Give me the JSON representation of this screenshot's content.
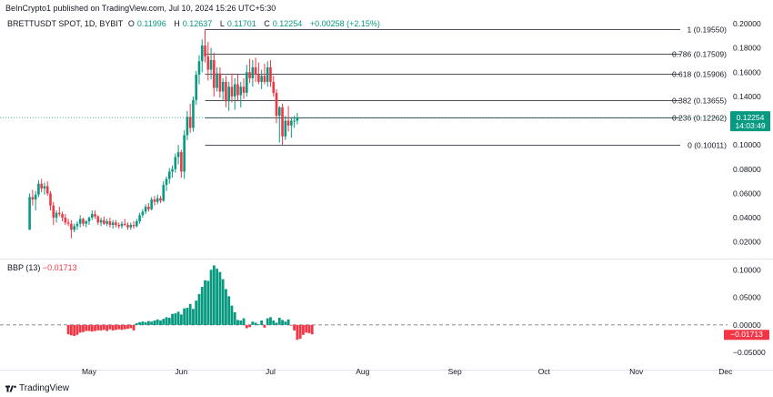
{
  "header": {
    "publisher_line": "BeInCrypto1 published on TradingView.com, Jul 10, 2024 15:26 UTC+5:30",
    "symbol": "BRETTUSDT SPOT, 1D, BYBIT",
    "ohlc": [
      {
        "label": "O",
        "value": "0.11996"
      },
      {
        "label": "H",
        "value": "0.12637"
      },
      {
        "label": "L",
        "value": "0.11701"
      },
      {
        "label": "C",
        "value": "0.12254"
      }
    ],
    "change": "+0.00258 (+2.15%)"
  },
  "indicator": {
    "label": "BBP (13)",
    "value": "−0.01713"
  },
  "brand": {
    "name": "TradingView"
  },
  "colors": {
    "up": "#089981",
    "down": "#f23645",
    "fib_line": "#131722",
    "text": "#131722"
  },
  "price_badge": {
    "value": "0.12254",
    "countdown": "14:03:49"
  },
  "bbp_badge": {
    "value": "−0.01713"
  },
  "chart_data": [
    {
      "type": "candlestick",
      "x_axis": {
        "ticks": [
          "May",
          "Jun",
          "Jul",
          "Aug",
          "Sep",
          "Oct",
          "Nov",
          "Dec"
        ]
      },
      "y_axis": {
        "ticks": [
          "0.20000",
          "0.18000",
          "0.16000",
          "0.14000",
          "0.12000",
          "0.10000",
          "0.08000",
          "0.06000",
          "0.04000",
          "0.02000"
        ],
        "range": [
          0.007,
          0.2045
        ]
      },
      "last_price": 0.12254,
      "fibonacci": [
        {
          "label": "1 (0.19550)",
          "value": 0.1955
        },
        {
          "label": "0.786 (0.17509)",
          "value": 0.17509
        },
        {
          "label": "0.618 (0.15906)",
          "value": 0.15906
        },
        {
          "label": "0.382 (0.13655)",
          "value": 0.13655
        },
        {
          "label": "0.236 (0.12262)",
          "value": 0.12262
        },
        {
          "label": "0 (0.10011)",
          "value": 0.10011
        }
      ],
      "candles": [
        {
          "d": "2024-04-11",
          "o": 0.03,
          "h": 0.06,
          "l": 0.03,
          "c": 0.057
        },
        {
          "d": "2024-04-12",
          "o": 0.057,
          "h": 0.063,
          "l": 0.05,
          "c": 0.055
        },
        {
          "d": "2024-04-13",
          "o": 0.055,
          "h": 0.062,
          "l": 0.046,
          "c": 0.059
        },
        {
          "d": "2024-04-14",
          "o": 0.059,
          "h": 0.071,
          "l": 0.057,
          "c": 0.068
        },
        {
          "d": "2024-04-15",
          "o": 0.068,
          "h": 0.072,
          "l": 0.061,
          "c": 0.064
        },
        {
          "d": "2024-04-16",
          "o": 0.064,
          "h": 0.069,
          "l": 0.059,
          "c": 0.066
        },
        {
          "d": "2024-04-17",
          "o": 0.066,
          "h": 0.07,
          "l": 0.058,
          "c": 0.06
        },
        {
          "d": "2024-04-18",
          "o": 0.06,
          "h": 0.062,
          "l": 0.046,
          "c": 0.05
        },
        {
          "d": "2024-04-19",
          "o": 0.05,
          "h": 0.053,
          "l": 0.034,
          "c": 0.04
        },
        {
          "d": "2024-04-20",
          "o": 0.04,
          "h": 0.046,
          "l": 0.036,
          "c": 0.044
        },
        {
          "d": "2024-04-21",
          "o": 0.044,
          "h": 0.049,
          "l": 0.041,
          "c": 0.043
        },
        {
          "d": "2024-04-22",
          "o": 0.043,
          "h": 0.045,
          "l": 0.037,
          "c": 0.04
        },
        {
          "d": "2024-04-23",
          "o": 0.04,
          "h": 0.043,
          "l": 0.034,
          "c": 0.036
        },
        {
          "d": "2024-04-24",
          "o": 0.036,
          "h": 0.039,
          "l": 0.033,
          "c": 0.035
        },
        {
          "d": "2024-04-25",
          "o": 0.035,
          "h": 0.038,
          "l": 0.023,
          "c": 0.03
        },
        {
          "d": "2024-04-26",
          "o": 0.03,
          "h": 0.035,
          "l": 0.028,
          "c": 0.033
        },
        {
          "d": "2024-04-27",
          "o": 0.033,
          "h": 0.037,
          "l": 0.03,
          "c": 0.035
        },
        {
          "d": "2024-04-28",
          "o": 0.035,
          "h": 0.042,
          "l": 0.032,
          "c": 0.039
        },
        {
          "d": "2024-04-29",
          "o": 0.039,
          "h": 0.04,
          "l": 0.033,
          "c": 0.035
        },
        {
          "d": "2024-04-30",
          "o": 0.035,
          "h": 0.038,
          "l": 0.032,
          "c": 0.037
        },
        {
          "d": "2024-05-01",
          "o": 0.037,
          "h": 0.041,
          "l": 0.034,
          "c": 0.04
        },
        {
          "d": "2024-05-02",
          "o": 0.04,
          "h": 0.046,
          "l": 0.038,
          "c": 0.043
        },
        {
          "d": "2024-05-03",
          "o": 0.043,
          "h": 0.046,
          "l": 0.039,
          "c": 0.041
        },
        {
          "d": "2024-05-04",
          "o": 0.041,
          "h": 0.042,
          "l": 0.034,
          "c": 0.036
        },
        {
          "d": "2024-05-05",
          "o": 0.036,
          "h": 0.04,
          "l": 0.033,
          "c": 0.038
        },
        {
          "d": "2024-05-06",
          "o": 0.038,
          "h": 0.041,
          "l": 0.034,
          "c": 0.035
        },
        {
          "d": "2024-05-07",
          "o": 0.035,
          "h": 0.039,
          "l": 0.033,
          "c": 0.037
        },
        {
          "d": "2024-05-08",
          "o": 0.037,
          "h": 0.04,
          "l": 0.032,
          "c": 0.034
        },
        {
          "d": "2024-05-09",
          "o": 0.034,
          "h": 0.038,
          "l": 0.031,
          "c": 0.036
        },
        {
          "d": "2024-05-10",
          "o": 0.036,
          "h": 0.038,
          "l": 0.032,
          "c": 0.034
        },
        {
          "d": "2024-05-11",
          "o": 0.034,
          "h": 0.036,
          "l": 0.031,
          "c": 0.033
        },
        {
          "d": "2024-05-12",
          "o": 0.033,
          "h": 0.037,
          "l": 0.031,
          "c": 0.035
        },
        {
          "d": "2024-05-13",
          "o": 0.035,
          "h": 0.039,
          "l": 0.033,
          "c": 0.034
        },
        {
          "d": "2024-05-14",
          "o": 0.034,
          "h": 0.036,
          "l": 0.03,
          "c": 0.032
        },
        {
          "d": "2024-05-15",
          "o": 0.032,
          "h": 0.036,
          "l": 0.03,
          "c": 0.034
        },
        {
          "d": "2024-05-16",
          "o": 0.034,
          "h": 0.037,
          "l": 0.031,
          "c": 0.033
        },
        {
          "d": "2024-05-17",
          "o": 0.033,
          "h": 0.039,
          "l": 0.032,
          "c": 0.037
        },
        {
          "d": "2024-05-18",
          "o": 0.037,
          "h": 0.044,
          "l": 0.035,
          "c": 0.042
        },
        {
          "d": "2024-05-19",
          "o": 0.042,
          "h": 0.047,
          "l": 0.04,
          "c": 0.045
        },
        {
          "d": "2024-05-20",
          "o": 0.045,
          "h": 0.051,
          "l": 0.043,
          "c": 0.049
        },
        {
          "d": "2024-05-21",
          "o": 0.049,
          "h": 0.052,
          "l": 0.045,
          "c": 0.047
        },
        {
          "d": "2024-05-22",
          "o": 0.047,
          "h": 0.057,
          "l": 0.046,
          "c": 0.055
        },
        {
          "d": "2024-05-23",
          "o": 0.055,
          "h": 0.058,
          "l": 0.05,
          "c": 0.053
        },
        {
          "d": "2024-05-24",
          "o": 0.053,
          "h": 0.059,
          "l": 0.051,
          "c": 0.056
        },
        {
          "d": "2024-05-25",
          "o": 0.056,
          "h": 0.058,
          "l": 0.052,
          "c": 0.054
        },
        {
          "d": "2024-05-26",
          "o": 0.054,
          "h": 0.07,
          "l": 0.053,
          "c": 0.067
        },
        {
          "d": "2024-05-27",
          "o": 0.067,
          "h": 0.074,
          "l": 0.062,
          "c": 0.072
        },
        {
          "d": "2024-05-28",
          "o": 0.072,
          "h": 0.081,
          "l": 0.068,
          "c": 0.078
        },
        {
          "d": "2024-05-29",
          "o": 0.078,
          "h": 0.083,
          "l": 0.073,
          "c": 0.08
        },
        {
          "d": "2024-05-30",
          "o": 0.08,
          "h": 0.093,
          "l": 0.077,
          "c": 0.09
        },
        {
          "d": "2024-05-31",
          "o": 0.09,
          "h": 0.1,
          "l": 0.084,
          "c": 0.094
        },
        {
          "d": "2024-06-01",
          "o": 0.094,
          "h": 0.096,
          "l": 0.073,
          "c": 0.078
        },
        {
          "d": "2024-06-02",
          "o": 0.078,
          "h": 0.112,
          "l": 0.072,
          "c": 0.108
        },
        {
          "d": "2024-06-03",
          "o": 0.108,
          "h": 0.128,
          "l": 0.104,
          "c": 0.123
        },
        {
          "d": "2024-06-04",
          "o": 0.123,
          "h": 0.134,
          "l": 0.11,
          "c": 0.114
        },
        {
          "d": "2024-06-05",
          "o": 0.114,
          "h": 0.14,
          "l": 0.111,
          "c": 0.137
        },
        {
          "d": "2024-06-06",
          "o": 0.137,
          "h": 0.161,
          "l": 0.133,
          "c": 0.158
        },
        {
          "d": "2024-06-07",
          "o": 0.158,
          "h": 0.174,
          "l": 0.15,
          "c": 0.169
        },
        {
          "d": "2024-06-08",
          "o": 0.169,
          "h": 0.187,
          "l": 0.16,
          "c": 0.182
        },
        {
          "d": "2024-06-09",
          "o": 0.182,
          "h": 0.1955,
          "l": 0.168,
          "c": 0.173
        },
        {
          "d": "2024-06-10",
          "o": 0.173,
          "h": 0.185,
          "l": 0.153,
          "c": 0.162
        },
        {
          "d": "2024-06-11",
          "o": 0.162,
          "h": 0.18,
          "l": 0.154,
          "c": 0.17
        },
        {
          "d": "2024-06-12",
          "o": 0.17,
          "h": 0.176,
          "l": 0.14,
          "c": 0.147
        },
        {
          "d": "2024-06-13",
          "o": 0.147,
          "h": 0.164,
          "l": 0.144,
          "c": 0.159
        },
        {
          "d": "2024-06-14",
          "o": 0.159,
          "h": 0.164,
          "l": 0.139,
          "c": 0.144
        },
        {
          "d": "2024-06-15",
          "o": 0.144,
          "h": 0.155,
          "l": 0.137,
          "c": 0.152
        },
        {
          "d": "2024-06-16",
          "o": 0.152,
          "h": 0.157,
          "l": 0.131,
          "c": 0.136
        },
        {
          "d": "2024-06-17",
          "o": 0.136,
          "h": 0.152,
          "l": 0.128,
          "c": 0.148
        },
        {
          "d": "2024-06-18",
          "o": 0.148,
          "h": 0.159,
          "l": 0.135,
          "c": 0.14
        },
        {
          "d": "2024-06-19",
          "o": 0.14,
          "h": 0.155,
          "l": 0.129,
          "c": 0.15
        },
        {
          "d": "2024-06-20",
          "o": 0.15,
          "h": 0.158,
          "l": 0.136,
          "c": 0.141
        },
        {
          "d": "2024-06-21",
          "o": 0.141,
          "h": 0.152,
          "l": 0.131,
          "c": 0.148
        },
        {
          "d": "2024-06-22",
          "o": 0.148,
          "h": 0.155,
          "l": 0.138,
          "c": 0.143
        },
        {
          "d": "2024-06-23",
          "o": 0.143,
          "h": 0.166,
          "l": 0.14,
          "c": 0.16
        },
        {
          "d": "2024-06-24",
          "o": 0.16,
          "h": 0.171,
          "l": 0.151,
          "c": 0.155
        },
        {
          "d": "2024-06-25",
          "o": 0.155,
          "h": 0.17,
          "l": 0.148,
          "c": 0.164
        },
        {
          "d": "2024-06-26",
          "o": 0.164,
          "h": 0.172,
          "l": 0.152,
          "c": 0.158
        },
        {
          "d": "2024-06-27",
          "o": 0.158,
          "h": 0.168,
          "l": 0.15,
          "c": 0.152
        },
        {
          "d": "2024-06-28",
          "o": 0.152,
          "h": 0.162,
          "l": 0.146,
          "c": 0.157
        },
        {
          "d": "2024-06-29",
          "o": 0.157,
          "h": 0.167,
          "l": 0.15,
          "c": 0.152
        },
        {
          "d": "2024-06-30",
          "o": 0.152,
          "h": 0.169,
          "l": 0.148,
          "c": 0.164
        },
        {
          "d": "2024-07-01",
          "o": 0.164,
          "h": 0.17,
          "l": 0.148,
          "c": 0.152
        },
        {
          "d": "2024-07-02",
          "o": 0.152,
          "h": 0.157,
          "l": 0.14,
          "c": 0.143
        },
        {
          "d": "2024-07-03",
          "o": 0.143,
          "h": 0.146,
          "l": 0.118,
          "c": 0.124
        },
        {
          "d": "2024-07-04",
          "o": 0.124,
          "h": 0.132,
          "l": 0.102,
          "c": 0.131
        },
        {
          "d": "2024-07-05",
          "o": 0.131,
          "h": 0.134,
          "l": 0.1001,
          "c": 0.107
        },
        {
          "d": "2024-07-06",
          "o": 0.107,
          "h": 0.124,
          "l": 0.104,
          "c": 0.12
        },
        {
          "d": "2024-07-07",
          "o": 0.12,
          "h": 0.132,
          "l": 0.111,
          "c": 0.116
        },
        {
          "d": "2024-07-08",
          "o": 0.116,
          "h": 0.123,
          "l": 0.106,
          "c": 0.12
        },
        {
          "d": "2024-07-09",
          "o": 0.12,
          "h": 0.124,
          "l": 0.114,
          "c": 0.12
        },
        {
          "d": "2024-07-10",
          "o": 0.11996,
          "h": 0.12637,
          "l": 0.11701,
          "c": 0.12254
        }
      ]
    },
    {
      "type": "bar",
      "title": "BBP (13)",
      "y_axis": {
        "ticks": [
          "0.10000",
          "0.05000",
          "0.00000",
          "−0.05000"
        ],
        "range": [
          -0.068,
          0.117
        ]
      },
      "last_value": -0.01713,
      "start_date": "2024-04-24",
      "values": [
        -0.017,
        -0.019,
        -0.02,
        -0.018,
        -0.014,
        -0.013,
        -0.011,
        -0.011,
        -0.012,
        -0.011,
        -0.01,
        -0.01,
        -0.009,
        -0.011,
        -0.008,
        -0.01,
        -0.009,
        -0.008,
        -0.009,
        -0.008,
        -0.007,
        -0.006,
        -0.01,
        0.003,
        0.005,
        0.006,
        0.005,
        0.007,
        0.006,
        0.008,
        0.01,
        0.008,
        0.011,
        0.014,
        0.013,
        0.02,
        0.021,
        0.024,
        0.019,
        0.03,
        0.031,
        0.038,
        0.029,
        0.044,
        0.056,
        0.069,
        0.081,
        0.08,
        0.1,
        0.108,
        0.102,
        0.096,
        0.083,
        0.065,
        0.052,
        0.035,
        0.023,
        0.009,
        0.008,
        0.012,
        -0.006,
        -0.004,
        0.006,
        0.004,
        0.001,
        0.008,
        -0.005,
        0.012,
        0.014,
        0.008,
        0.004,
        0.013,
        0.009,
        0.006,
        0.01,
        -0.001,
        -0.01,
        -0.027,
        -0.025,
        -0.018,
        -0.014,
        -0.015,
        -0.017
      ]
    }
  ]
}
